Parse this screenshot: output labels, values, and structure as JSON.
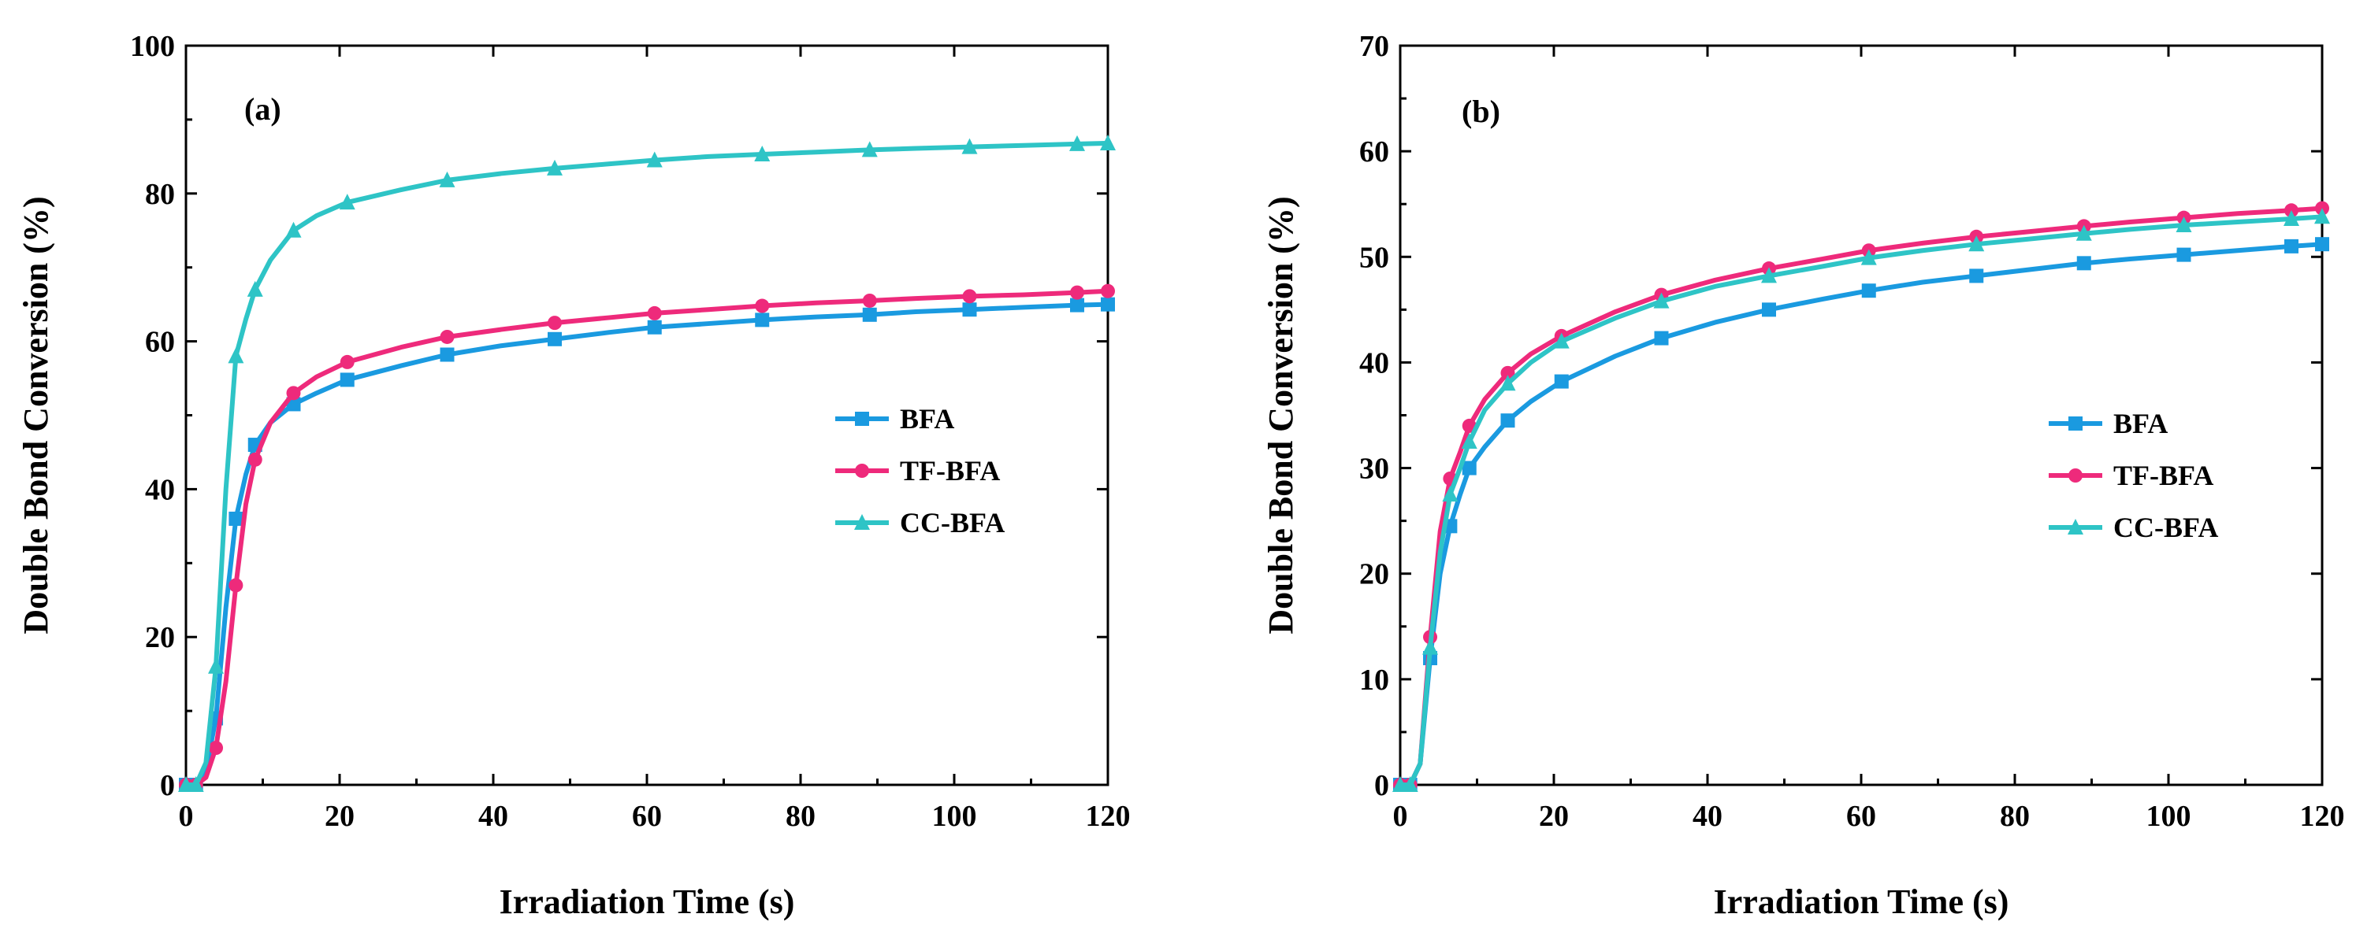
{
  "chart_data": [
    {
      "type": "line",
      "panel_label": "(a)",
      "xlabel": "Irradiation Time (s)",
      "ylabel": "Double Bond Conversion (%)",
      "xlim": [
        0,
        120
      ],
      "ylim": [
        0,
        100
      ],
      "xticks": [
        0,
        20,
        40,
        60,
        80,
        100,
        120
      ],
      "yticks": [
        0,
        20,
        40,
        60,
        80,
        100
      ],
      "grid": false,
      "legend_position": "center-right",
      "series": [
        {
          "name": "BFA",
          "color": "#1a9ae0",
          "marker": "square",
          "x": [
            0,
            1.3,
            2.6,
            3.9,
            5.2,
            6.5,
            7.8,
            9,
            11,
            14,
            17,
            21,
            28,
            34,
            41,
            48,
            55,
            61,
            68,
            75,
            82,
            89,
            95,
            102,
            109,
            116,
            120
          ],
          "y": [
            0,
            0,
            2,
            9,
            24,
            36,
            42,
            46,
            49,
            51.5,
            53,
            54.8,
            56.7,
            58.2,
            59.4,
            60.3,
            61.2,
            61.9,
            62.4,
            62.9,
            63.3,
            63.6,
            64,
            64.3,
            64.6,
            64.9,
            65
          ]
        },
        {
          "name": "TF-BFA",
          "color": "#ee2a7b",
          "marker": "circle",
          "x": [
            0,
            1.3,
            2.6,
            3.9,
            5.2,
            6.5,
            7.8,
            9,
            11,
            14,
            17,
            21,
            28,
            34,
            41,
            48,
            55,
            61,
            68,
            75,
            82,
            89,
            95,
            102,
            109,
            116,
            120
          ],
          "y": [
            0,
            0,
            1,
            5,
            14,
            27,
            38,
            44,
            49,
            53,
            55.2,
            57.2,
            59.2,
            60.6,
            61.6,
            62.5,
            63.2,
            63.8,
            64.3,
            64.8,
            65.2,
            65.5,
            65.8,
            66.1,
            66.3,
            66.6,
            66.8
          ]
        },
        {
          "name": "CC-BFA",
          "color": "#2ec4c6",
          "marker": "triangle",
          "x": [
            0,
            1.3,
            2.6,
            3.9,
            5.2,
            6.5,
            7.8,
            9,
            11,
            14,
            17,
            21,
            28,
            34,
            41,
            48,
            55,
            61,
            68,
            75,
            82,
            89,
            95,
            102,
            109,
            116,
            120
          ],
          "y": [
            0,
            0,
            3,
            16,
            40,
            58,
            63,
            67,
            71,
            75,
            77,
            78.8,
            80.5,
            81.8,
            82.7,
            83.4,
            84,
            84.5,
            85,
            85.3,
            85.6,
            85.9,
            86.1,
            86.3,
            86.5,
            86.7,
            86.8
          ]
        }
      ]
    },
    {
      "type": "line",
      "panel_label": "(b)",
      "xlabel": "Irradiation Time (s)",
      "ylabel": "Double Bond Conversion (%)",
      "xlim": [
        0,
        120
      ],
      "ylim": [
        0,
        70
      ],
      "xticks": [
        0,
        20,
        40,
        60,
        80,
        100,
        120
      ],
      "yticks": [
        0,
        10,
        20,
        30,
        40,
        50,
        60,
        70
      ],
      "grid": false,
      "legend_position": "center-right",
      "series": [
        {
          "name": "BFA",
          "color": "#1a9ae0",
          "marker": "square",
          "x": [
            0,
            1.3,
            2.6,
            3.9,
            5.2,
            6.5,
            7.8,
            9,
            11,
            14,
            17,
            21,
            28,
            34,
            41,
            48,
            55,
            61,
            68,
            75,
            82,
            89,
            95,
            102,
            109,
            116,
            120
          ],
          "y": [
            0,
            0,
            2,
            12,
            20,
            24.5,
            27.5,
            30,
            32,
            34.5,
            36.3,
            38.2,
            40.6,
            42.3,
            43.8,
            45,
            46,
            46.8,
            47.6,
            48.2,
            48.8,
            49.4,
            49.8,
            50.2,
            50.6,
            51,
            51.2
          ]
        },
        {
          "name": "TF-BFA",
          "color": "#ee2a7b",
          "marker": "circle",
          "x": [
            0,
            1.3,
            2.6,
            3.9,
            5.2,
            6.5,
            7.8,
            9,
            11,
            14,
            17,
            21,
            28,
            34,
            41,
            48,
            55,
            61,
            68,
            75,
            82,
            89,
            95,
            102,
            109,
            116,
            120
          ],
          "y": [
            0,
            0,
            2,
            14,
            24,
            29,
            31.5,
            34,
            36.5,
            39,
            40.8,
            42.5,
            44.8,
            46.4,
            47.8,
            48.9,
            49.8,
            50.6,
            51.3,
            51.9,
            52.4,
            52.9,
            53.3,
            53.7,
            54.1,
            54.4,
            54.6
          ]
        },
        {
          "name": "CC-BFA",
          "color": "#2ec4c6",
          "marker": "triangle",
          "x": [
            0,
            1.3,
            2.6,
            3.9,
            5.2,
            6.5,
            7.8,
            9,
            11,
            14,
            17,
            21,
            28,
            34,
            41,
            48,
            55,
            61,
            68,
            75,
            82,
            89,
            95,
            102,
            109,
            116,
            120
          ],
          "y": [
            0,
            0,
            2,
            13,
            22,
            27.5,
            30,
            32.5,
            35.5,
            38,
            40,
            42,
            44.2,
            45.8,
            47.2,
            48.2,
            49.1,
            49.9,
            50.6,
            51.2,
            51.7,
            52.2,
            52.6,
            53,
            53.3,
            53.6,
            53.8
          ]
        }
      ]
    }
  ]
}
